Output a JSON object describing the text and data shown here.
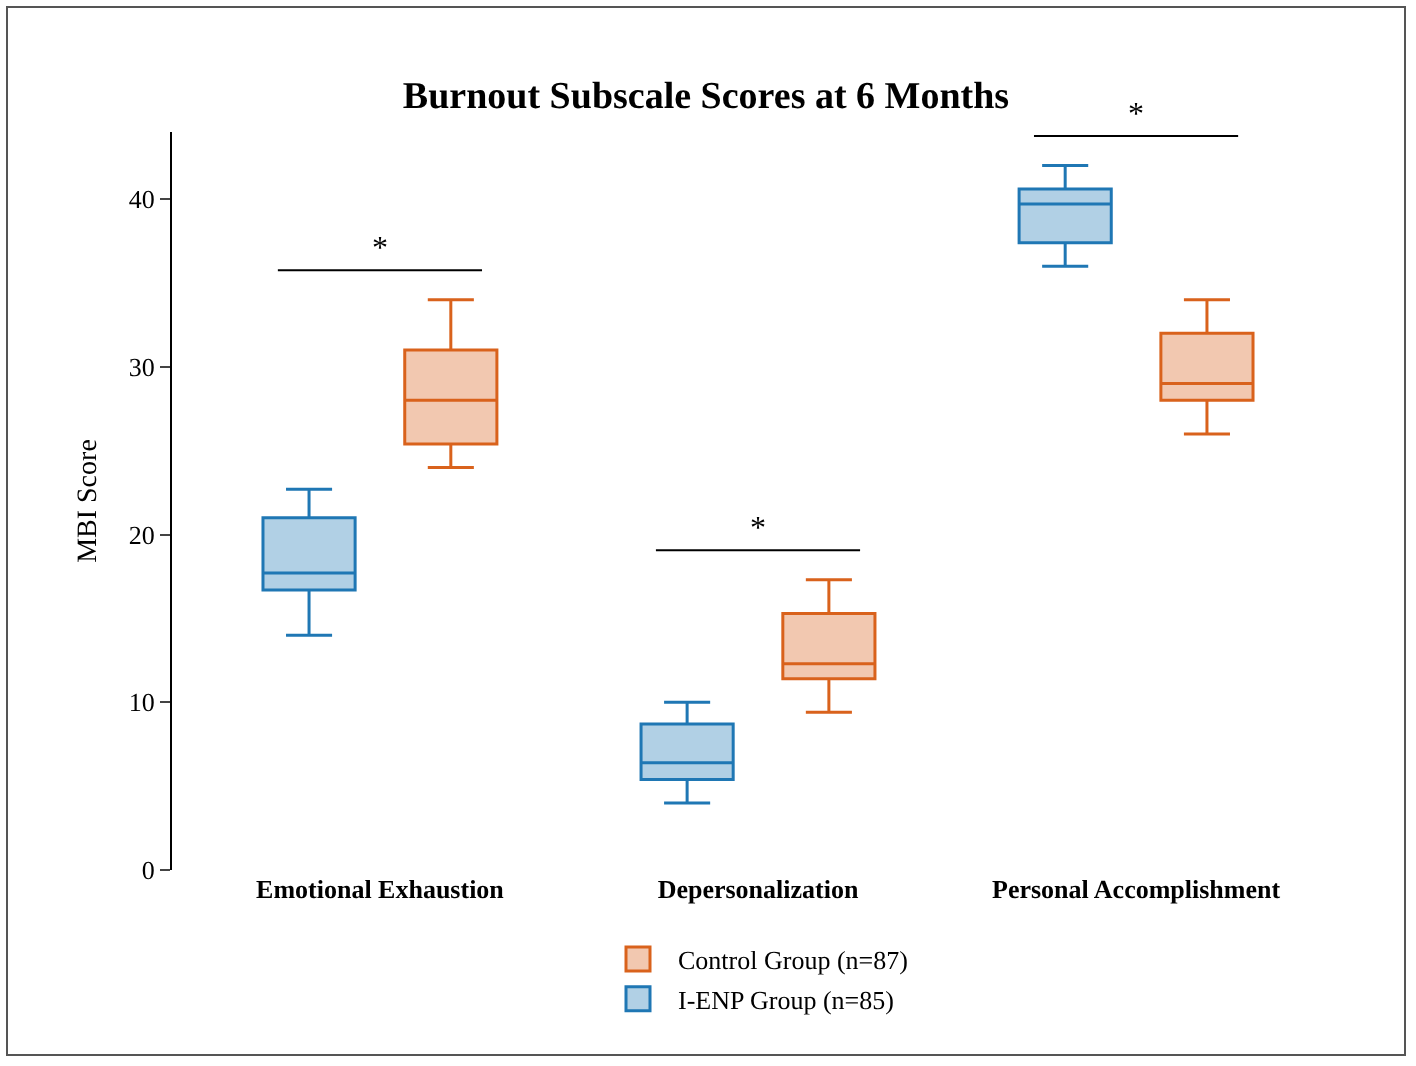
{
  "chart_data": {
    "type": "box",
    "title": "Burnout Subscale Scores at 6 Months",
    "ylabel": "MBI Score",
    "categories": [
      "Emotional Exhaustion",
      "Depersonalization",
      "Personal Accomplishment"
    ],
    "series": [
      {
        "name": "I-ENP Group (n=85)",
        "color": "#1f77b4",
        "boxes": [
          {
            "low": 14,
            "q1": 16.7,
            "median": 17.7,
            "q3": 21,
            "high": 22.7
          },
          {
            "low": 4,
            "q1": 5.4,
            "median": 6.4,
            "q3": 8.7,
            "high": 10
          },
          {
            "low": 36,
            "q1": 37.4,
            "median": 39.7,
            "q3": 40.6,
            "high": 42
          }
        ]
      },
      {
        "name": "Control Group (n=87)",
        "color": "#d9621c",
        "boxes": [
          {
            "low": 24,
            "q1": 25.4,
            "median": 28,
            "q3": 31,
            "high": 34
          },
          {
            "low": 9.4,
            "q1": 11.4,
            "median": 12.3,
            "q3": 15.3,
            "high": 17.3
          },
          {
            "low": 26,
            "q1": 28,
            "median": 29,
            "q3": 32,
            "high": 34
          }
        ]
      }
    ],
    "ylim": [
      0,
      44
    ],
    "yticks": [
      0,
      10,
      20,
      30,
      40
    ],
    "grid": false,
    "legend": "bottom",
    "annotations": [
      "*",
      "*",
      "*"
    ]
  }
}
